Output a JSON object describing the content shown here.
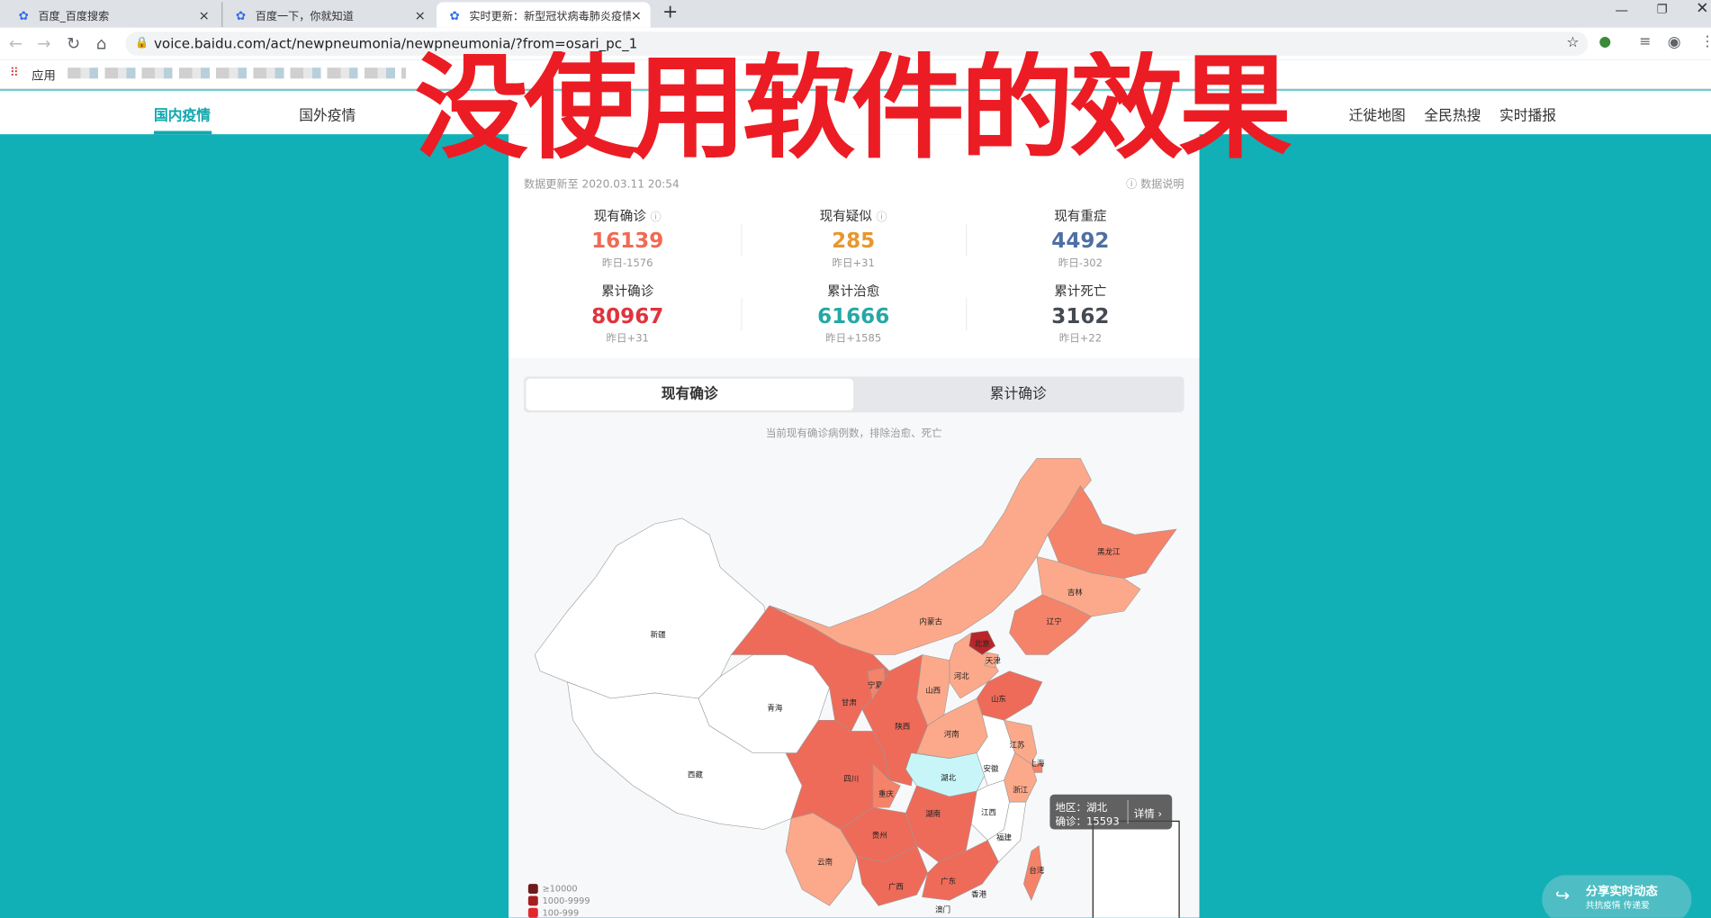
{
  "browser": {
    "tabs": [
      {
        "title": "百度_百度搜索",
        "active": false
      },
      {
        "title": "百度一下，你就知道",
        "active": false
      },
      {
        "title": "实时更新：新型冠状病毒肺炎疫情",
        "active": true
      }
    ],
    "new_tab": "+",
    "url": "voice.baidu.com/act/newpneumonia/newpneumonia/?from=osari_pc_1",
    "bookmarks_apps": "应用"
  },
  "overlay_text": "没使用软件的效果",
  "site_nav": [
    "国内疫情",
    "国外疫情",
    "迁徙地图",
    "全民热搜",
    "实时播报"
  ],
  "update_time": "数据更新至 2020.03.11 20:54",
  "data_note": "数据说明",
  "stats": [
    {
      "label": "现有确诊",
      "value": "16139",
      "delta": "昨日-1576",
      "color": "#f06a54",
      "help": true
    },
    {
      "label": "现有疑似",
      "value": "285",
      "delta": "昨日+31",
      "color": "#e8962e",
      "help": true
    },
    {
      "label": "现有重症",
      "value": "4492",
      "delta": "昨日-302",
      "color": "#4e6fa3",
      "help": false
    },
    {
      "label": "累计确诊",
      "value": "80967",
      "delta": "昨日+31",
      "color": "#e0333d",
      "help": false
    },
    {
      "label": "累计治愈",
      "value": "61666",
      "delta": "昨日+1585",
      "color": "#24a8a6",
      "help": false
    },
    {
      "label": "累计死亡",
      "value": "3162",
      "delta": "昨日+22",
      "color": "#454a52",
      "help": false
    }
  ],
  "toggle": {
    "options": [
      "现有确诊",
      "累计确诊"
    ],
    "selected": "现有确诊"
  },
  "map_note": "当前现有确诊病例数，排除治愈、死亡",
  "map": {
    "labels": {
      "xinjiang": "新疆",
      "xizang": "西藏",
      "qinghai": "青海",
      "gansu": "甘肃",
      "neimenggu": "内蒙古",
      "heilongjiang": "黑龙江",
      "jilin": "吉林",
      "liaoning": "辽宁",
      "beijing": "北京",
      "tianjin": "天津",
      "hebei": "河北",
      "shanxi": "山西",
      "shandong": "山东",
      "ningxia": "宁夏",
      "shaanxi": "陕西",
      "henan": "河南",
      "hubei": "湖北",
      "anhui": "安徽",
      "jiangsu": "江苏",
      "shanghai": "上海",
      "zhejiang": "浙江",
      "jiangxi": "江西",
      "fujian": "福建",
      "hunan": "湖南",
      "sichuan": "四川",
      "chongqing": "重庆",
      "guizhou": "贵州",
      "yunnan": "云南",
      "guangxi": "广西",
      "guangdong": "广东",
      "taiwan": "台湾",
      "xianggang": "香港",
      "aomen": "澳门"
    },
    "legend": [
      {
        "label": "≥10000",
        "color": "#701b1b"
      },
      {
        "label": "1000-9999",
        "color": "#a61e22"
      },
      {
        "label": "100-999",
        "color": "#e0282e"
      }
    ],
    "tooltip": {
      "region": "地区：湖北",
      "confirmed": "确诊：15593",
      "detail": "详情 ›"
    }
  },
  "share": {
    "title": "分享实时动态",
    "subtitle": "共抗疫情 传递爱"
  }
}
